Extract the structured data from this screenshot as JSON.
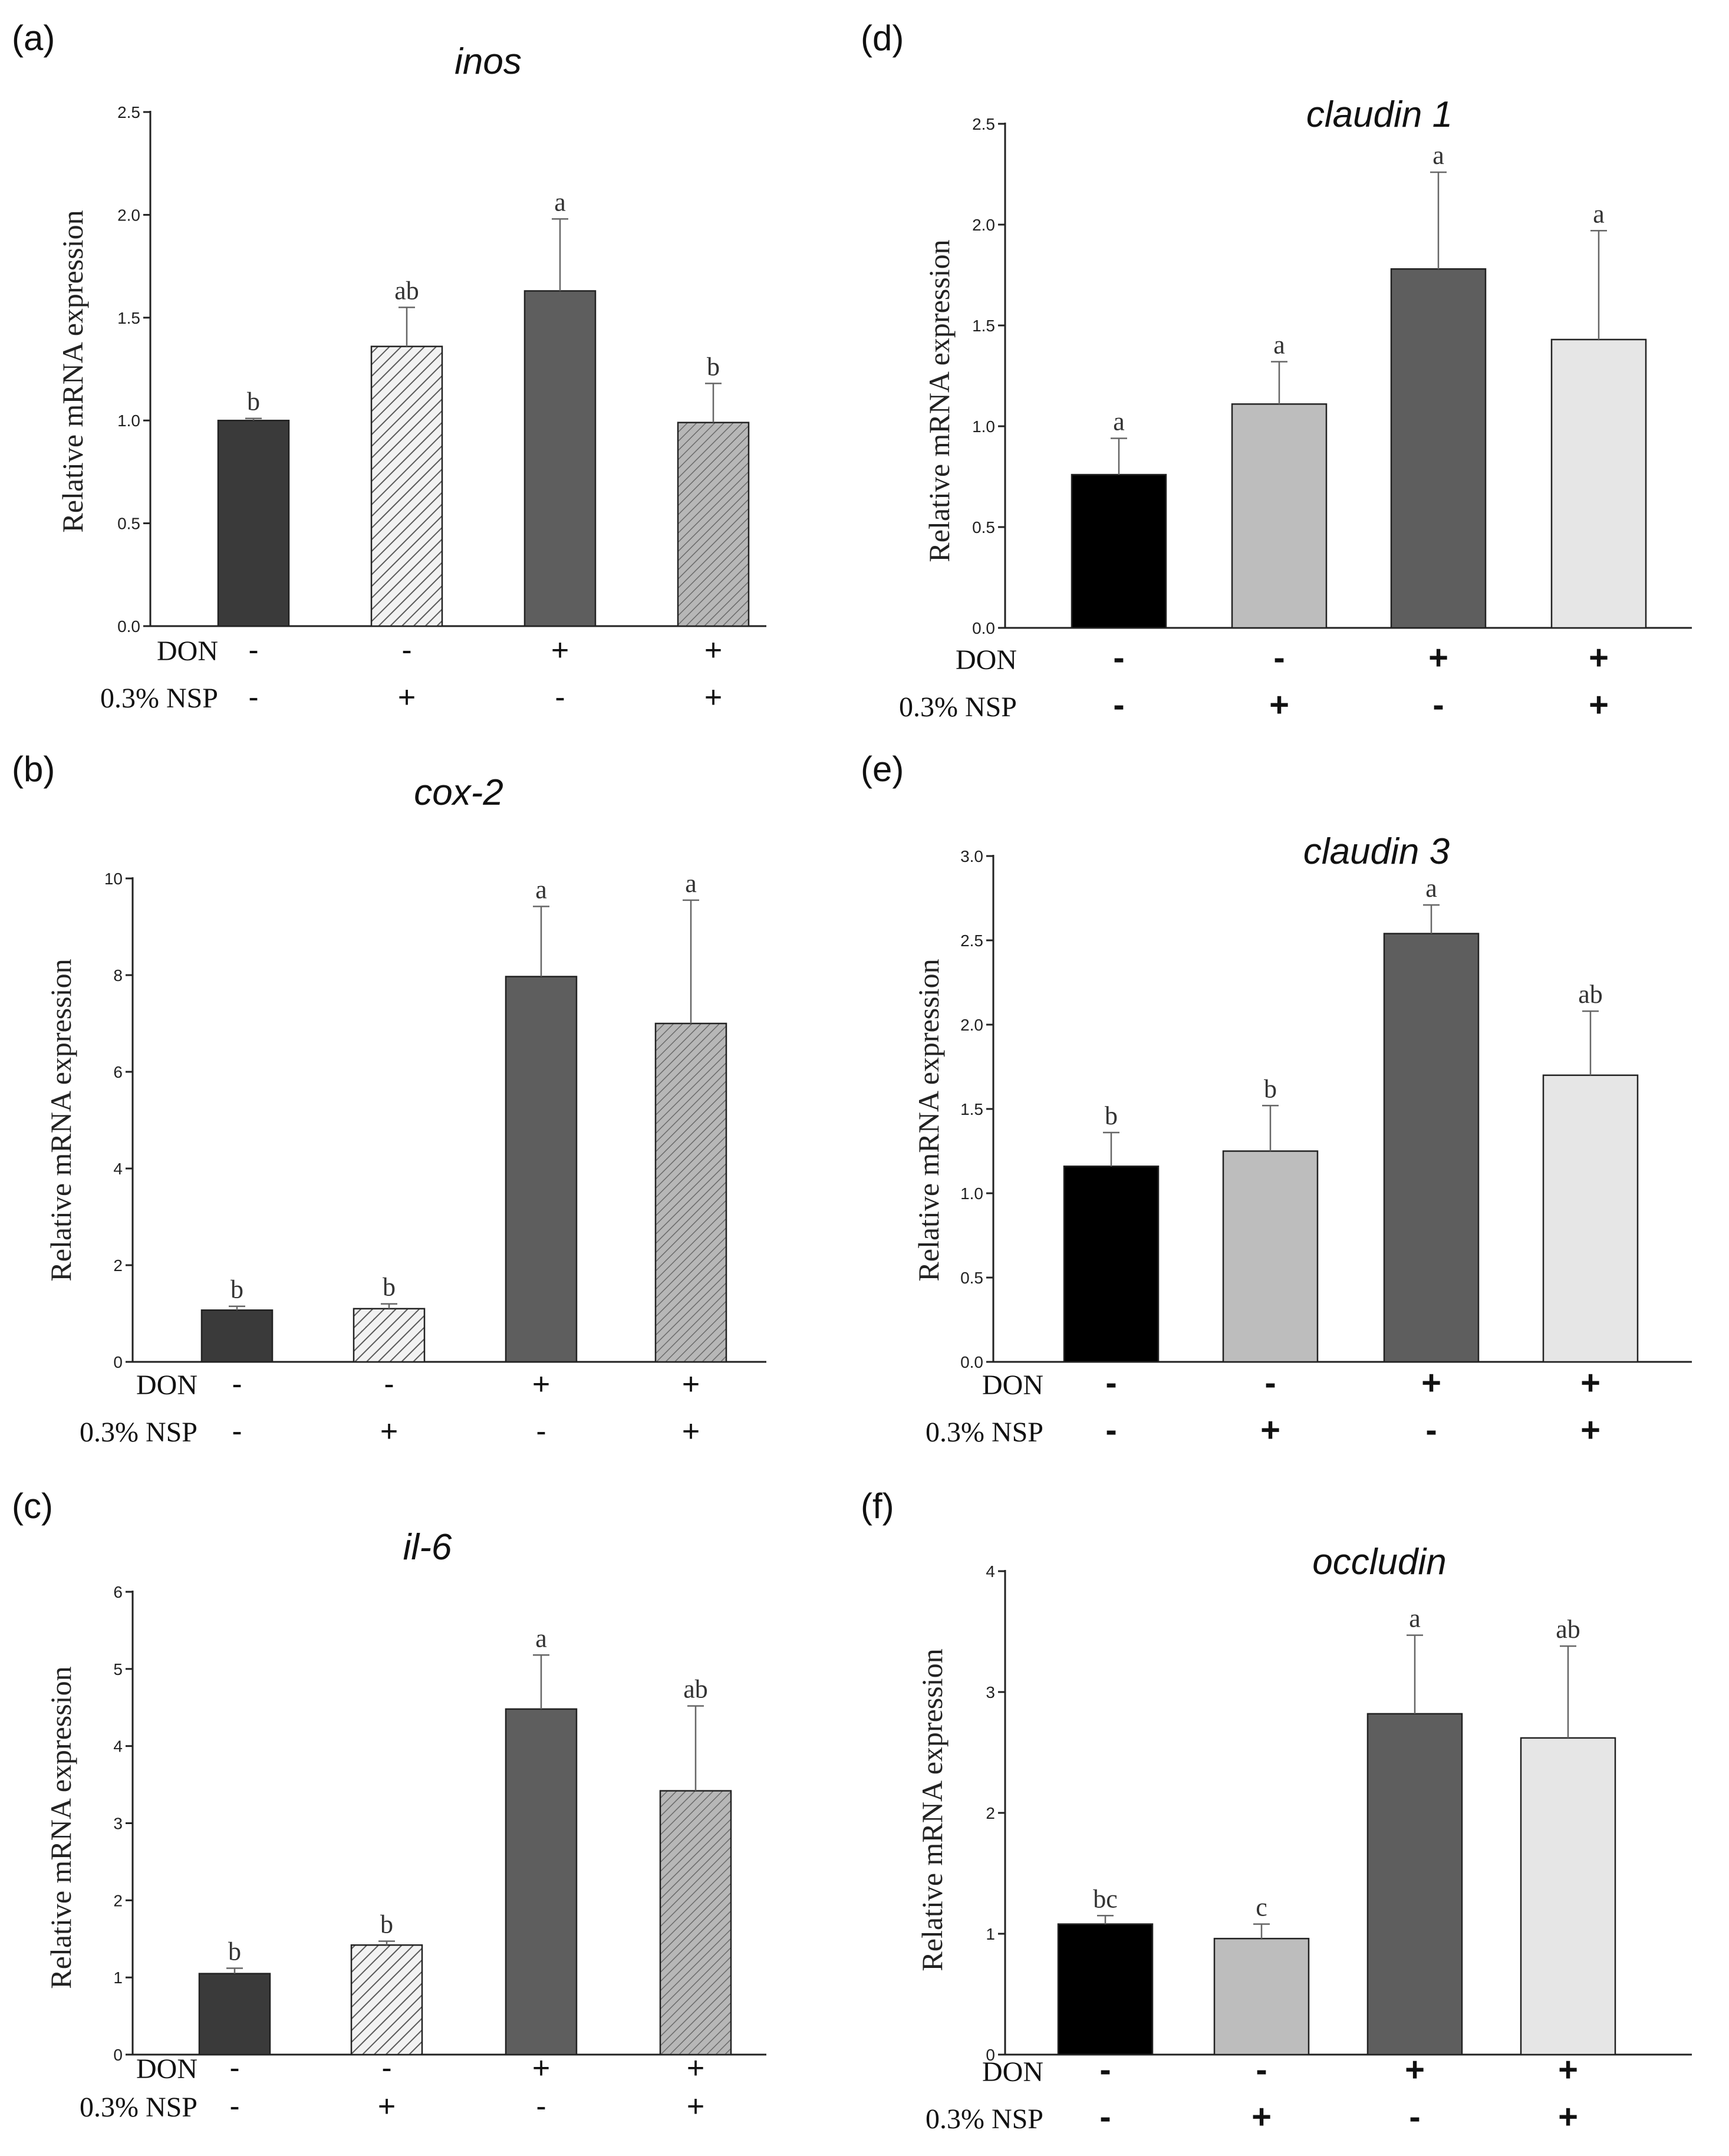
{
  "colors": {
    "hatch_light": "#f2f2f2",
    "hatch_dark": "#5a5a5a"
  },
  "chart_data": [
    {
      "panel": "(a)",
      "type": "bar",
      "title": "inos",
      "ylabel": "Relative mRNA expression",
      "ylim": [
        0,
        2.5
      ],
      "yticks": [
        "0.0",
        "0.5",
        "1.0",
        "1.5",
        "2.0",
        "2.5"
      ],
      "conditions": [
        {
          "label": "DON",
          "signs": [
            "-",
            "-",
            "+",
            "+"
          ]
        },
        {
          "label": "0.3% NSP",
          "signs": [
            "-",
            "+",
            "-",
            "+"
          ]
        }
      ],
      "values": [
        1.0,
        1.36,
        1.63,
        0.99
      ],
      "errors": [
        0.01,
        0.19,
        0.35,
        0.19
      ],
      "letters": [
        "b",
        "ab",
        "a",
        "b"
      ],
      "fills": [
        "#3a3a3a",
        "hatch-light",
        "#5e5e5e",
        "hatch-gray"
      ]
    },
    {
      "panel": "(b)",
      "type": "bar",
      "title": "cox-2",
      "ylabel": "Relative mRNA expression",
      "ylim": [
        0,
        10
      ],
      "yticks": [
        "0",
        "2",
        "4",
        "6",
        "8",
        "10"
      ],
      "conditions": [
        {
          "label": "DON",
          "signs": [
            "-",
            "-",
            "+",
            "+"
          ]
        },
        {
          "label": "0.3% NSP",
          "signs": [
            "-",
            "+",
            "-",
            "+"
          ]
        }
      ],
      "values": [
        1.07,
        1.1,
        7.97,
        7.0
      ],
      "errors": [
        0.08,
        0.1,
        1.45,
        2.55
      ],
      "letters": [
        "b",
        "b",
        "a",
        "a"
      ],
      "fills": [
        "#3a3a3a",
        "hatch-light",
        "#5e5e5e",
        "hatch-gray"
      ]
    },
    {
      "panel": "(c)",
      "type": "bar",
      "title": "il-6",
      "ylabel": "Relative mRNA expression",
      "ylim": [
        0,
        6
      ],
      "yticks": [
        "0",
        "1",
        "2",
        "3",
        "4",
        "5",
        "6"
      ],
      "conditions": [
        {
          "label": "DON",
          "signs": [
            "-",
            "-",
            "+",
            "+"
          ]
        },
        {
          "label": "0.3% NSP",
          "signs": [
            "-",
            "+",
            "-",
            "+"
          ]
        }
      ],
      "values": [
        1.05,
        1.42,
        4.48,
        3.42
      ],
      "errors": [
        0.07,
        0.05,
        0.7,
        1.1
      ],
      "letters": [
        "b",
        "b",
        "a",
        "ab"
      ],
      "fills": [
        "#3a3a3a",
        "hatch-light",
        "#5e5e5e",
        "hatch-gray"
      ]
    },
    {
      "panel": "(d)",
      "type": "bar",
      "title": "claudin 1",
      "ylabel": "Relative mRNA expression",
      "ylim": [
        0,
        2.5
      ],
      "yticks": [
        "0.0",
        "0.5",
        "1.0",
        "1.5",
        "2.0",
        "2.5"
      ],
      "conditions": [
        {
          "label": "DON",
          "signs": [
            "-",
            "-",
            "+",
            "+"
          ]
        },
        {
          "label": "0.3% NSP",
          "signs": [
            "-",
            "+",
            "-",
            "+"
          ]
        }
      ],
      "values": [
        0.76,
        1.11,
        1.78,
        1.43
      ],
      "errors": [
        0.18,
        0.21,
        0.48,
        0.54
      ],
      "letters": [
        "a",
        "a",
        "a",
        "a"
      ],
      "fills": [
        "#000000",
        "#bdbdbd",
        "#5e5e5e",
        "#e6e6e6"
      ]
    },
    {
      "panel": "(e)",
      "type": "bar",
      "title": "claudin 3",
      "ylabel": "Relative mRNA expression",
      "ylim": [
        0,
        3.0
      ],
      "yticks": [
        "0.0",
        "0.5",
        "1.0",
        "1.5",
        "2.0",
        "2.5",
        "3.0"
      ],
      "conditions": [
        {
          "label": "DON",
          "signs": [
            "-",
            "-",
            "+",
            "+"
          ]
        },
        {
          "label": "0.3% NSP",
          "signs": [
            "-",
            "+",
            "-",
            "+"
          ]
        }
      ],
      "values": [
        1.16,
        1.25,
        2.54,
        1.7
      ],
      "errors": [
        0.2,
        0.27,
        0.17,
        0.38
      ],
      "letters": [
        "b",
        "b",
        "a",
        "ab"
      ],
      "fills": [
        "#000000",
        "#bdbdbd",
        "#5e5e5e",
        "#e6e6e6"
      ]
    },
    {
      "panel": "(f)",
      "type": "bar",
      "title": "occludin",
      "ylabel": "Relative mRNA expression",
      "ylim": [
        0,
        4
      ],
      "yticks": [
        "0",
        "1",
        "2",
        "3",
        "4"
      ],
      "conditions": [
        {
          "label": "DON",
          "signs": [
            "-",
            "-",
            "+",
            "+"
          ]
        },
        {
          "label": "0.3% NSP",
          "signs": [
            "-",
            "+",
            "-",
            "+"
          ]
        }
      ],
      "values": [
        1.08,
        0.96,
        2.82,
        2.62
      ],
      "errors": [
        0.07,
        0.12,
        0.65,
        0.76
      ],
      "letters": [
        "bc",
        "c",
        "a",
        "ab"
      ],
      "fills": [
        "#000000",
        "#bdbdbd",
        "#5e5e5e",
        "#e6e6e6"
      ]
    }
  ]
}
